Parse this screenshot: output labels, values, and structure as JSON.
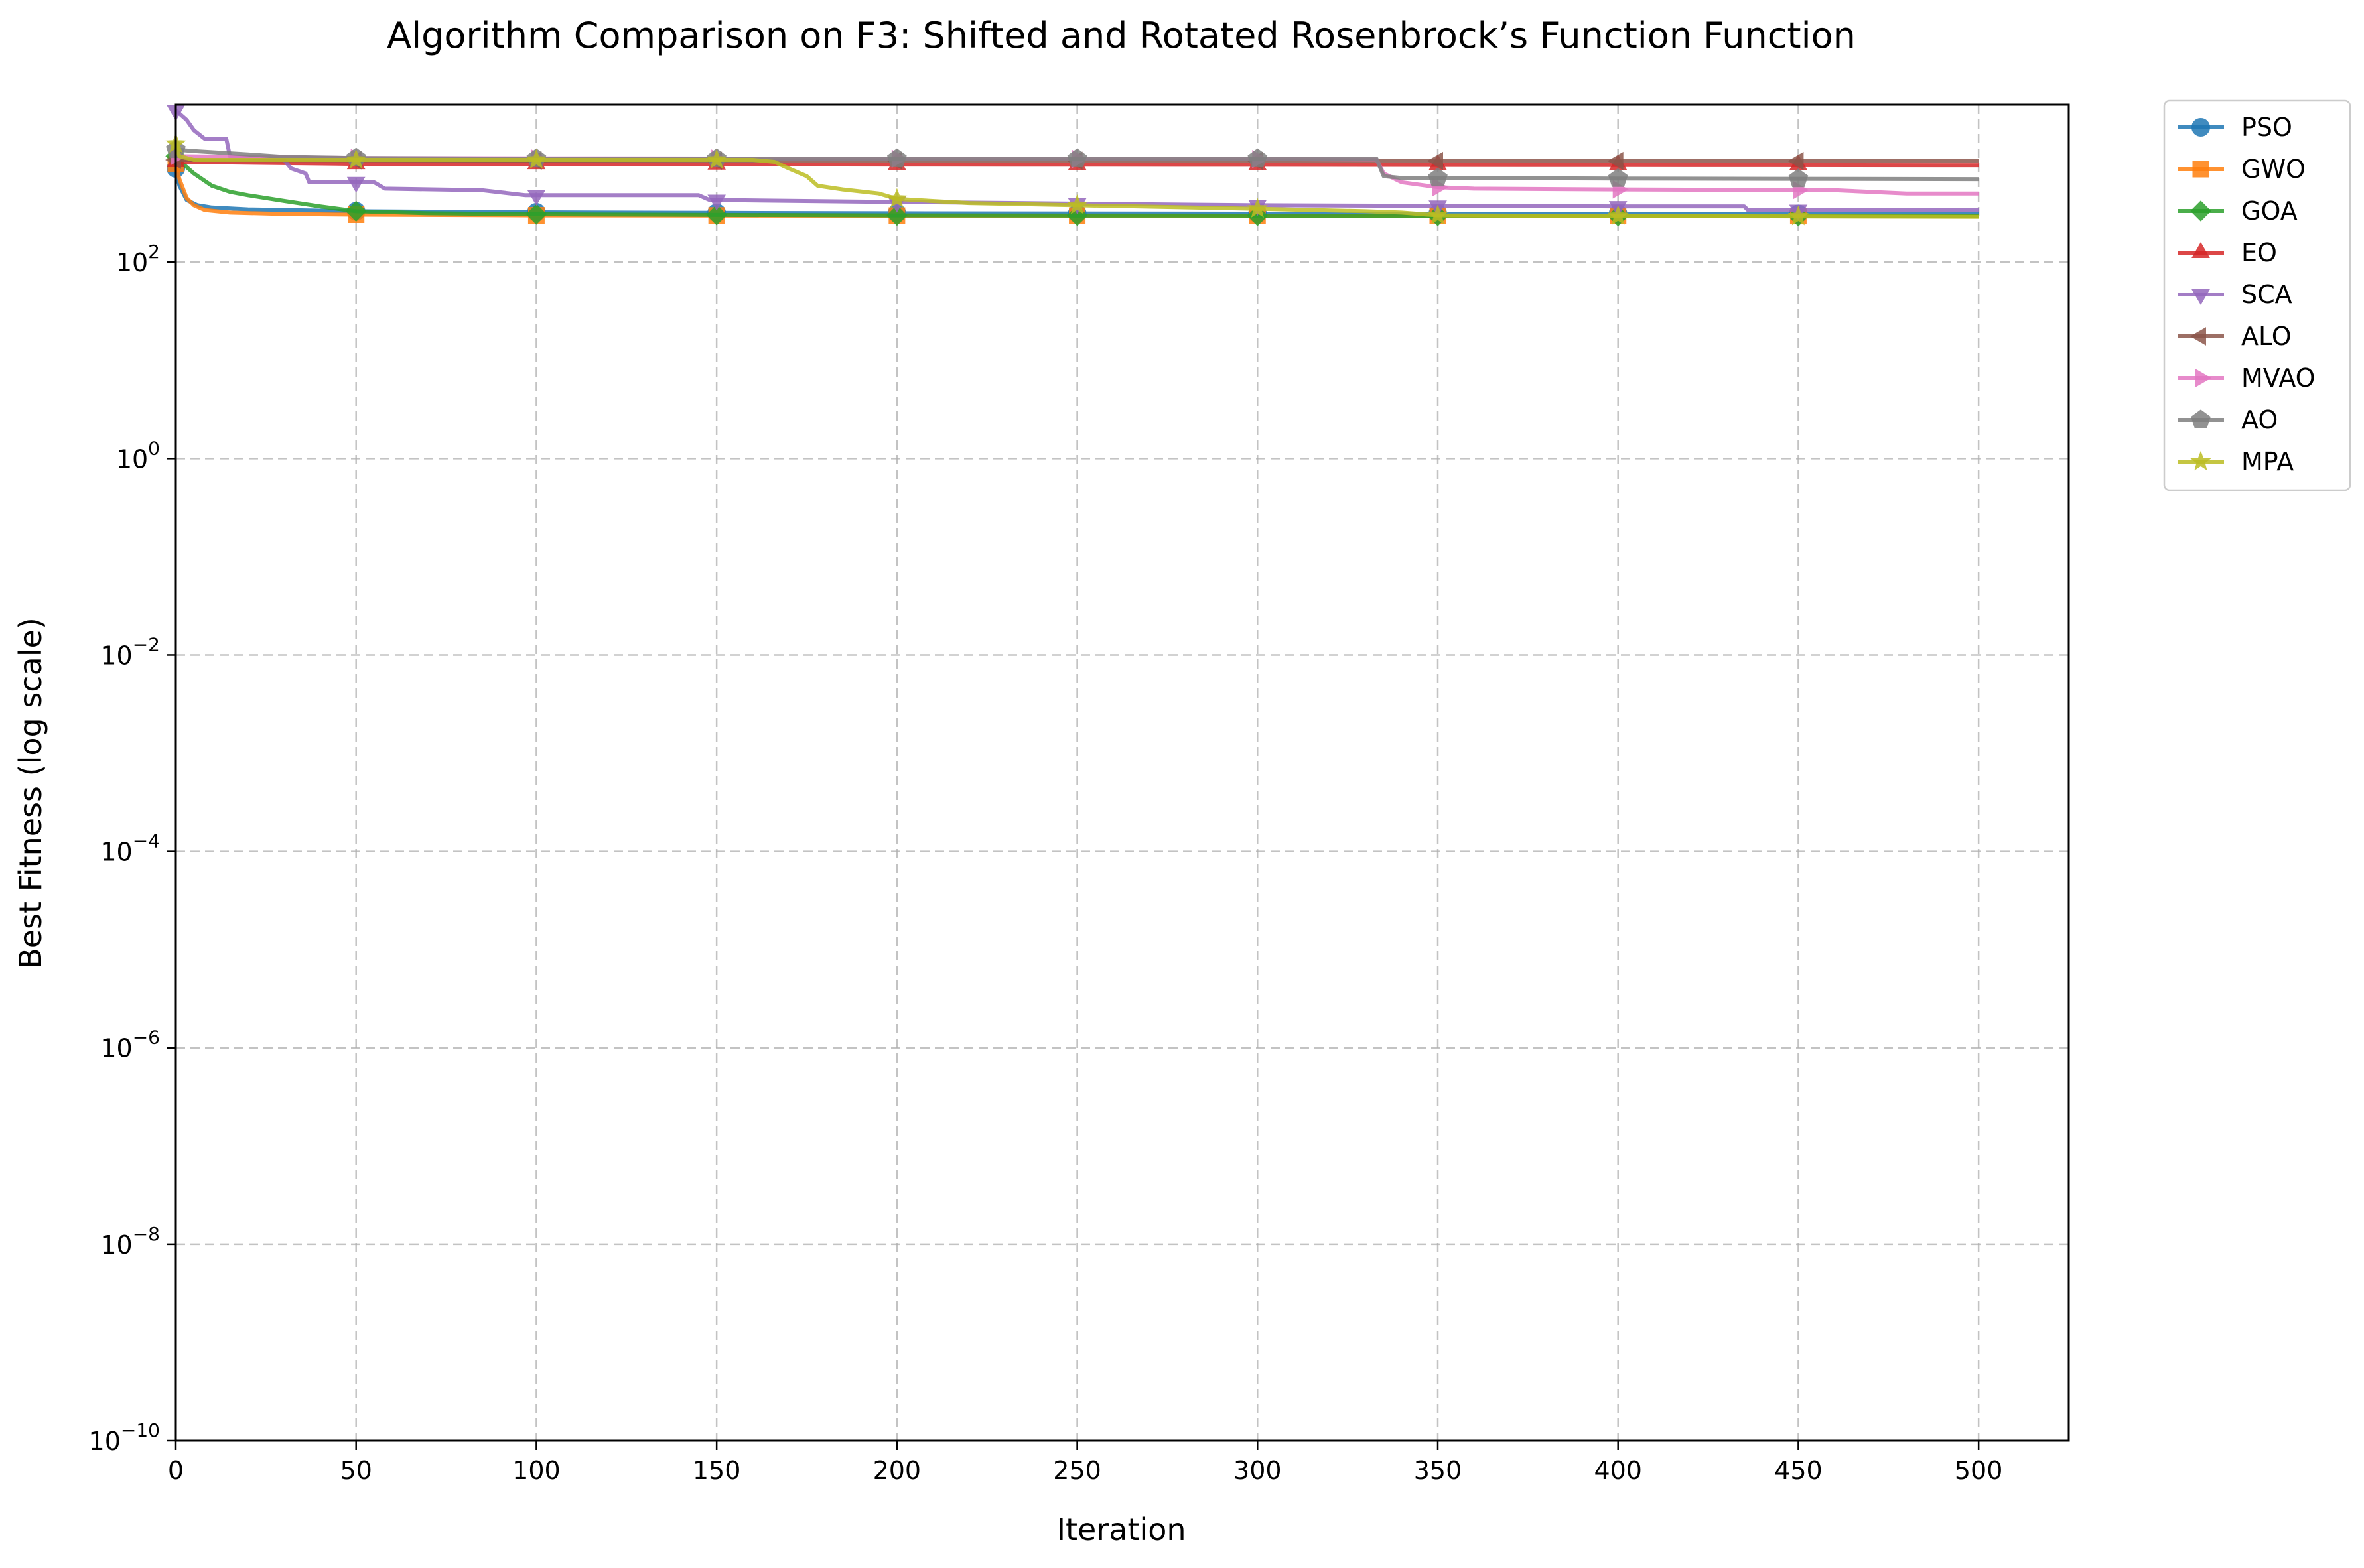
{
  "chart_data": {
    "type": "line",
    "title": "Algorithm Comparison on F3: Shifted and Rotated Rosenbrock’s Function Function",
    "xlabel": "Iteration",
    "ylabel": "Best Fitness (log scale)",
    "xlim": [
      0,
      525
    ],
    "ylim": [
      1e-10,
      4000
    ],
    "yscale": "log",
    "grid": true,
    "legend_position": "outside-top-right",
    "x_ticks": [
      0,
      50,
      100,
      150,
      200,
      250,
      300,
      350,
      400,
      450,
      500
    ],
    "x_tick_labels": [
      "0",
      "50",
      "100",
      "150",
      "200",
      "250",
      "300",
      "350",
      "400",
      "450",
      "500"
    ],
    "y_ticks": [
      1e-10,
      1e-08,
      1e-06,
      0.0001,
      0.01,
      1,
      100
    ],
    "y_tick_labels": [
      {
        "base": "10",
        "exp": "−10"
      },
      {
        "base": "10",
        "exp": "−8"
      },
      {
        "base": "10",
        "exp": "−6"
      },
      {
        "base": "10",
        "exp": "−4"
      },
      {
        "base": "10",
        "exp": "−2"
      },
      {
        "base": "10",
        "exp": "0"
      },
      {
        "base": "10",
        "exp": "2"
      }
    ],
    "series": [
      {
        "name": "PSO",
        "color": "#1f77b4",
        "marker": "circle",
        "points": [
          [
            0,
            900
          ],
          [
            1,
            600
          ],
          [
            3,
            430
          ],
          [
            6,
            380
          ],
          [
            10,
            360
          ],
          [
            20,
            345
          ],
          [
            40,
            335
          ],
          [
            50,
            330
          ],
          [
            100,
            322
          ],
          [
            150,
            318
          ],
          [
            200,
            315
          ],
          [
            300,
            312
          ],
          [
            400,
            311
          ],
          [
            500,
            310
          ]
        ]
      },
      {
        "name": "GWO",
        "color": "#ff7f0e",
        "marker": "square",
        "points": [
          [
            0,
            1000
          ],
          [
            1,
            700
          ],
          [
            3,
            450
          ],
          [
            5,
            380
          ],
          [
            8,
            340
          ],
          [
            15,
            320
          ],
          [
            30,
            310
          ],
          [
            50,
            305
          ],
          [
            100,
            300
          ],
          [
            200,
            298
          ],
          [
            300,
            297
          ],
          [
            400,
            296
          ],
          [
            500,
            295
          ]
        ]
      },
      {
        "name": "GOA",
        "color": "#2ca02c",
        "marker": "diamond",
        "points": [
          [
            0,
            1200
          ],
          [
            2,
            1000
          ],
          [
            5,
            800
          ],
          [
            10,
            600
          ],
          [
            15,
            520
          ],
          [
            20,
            480
          ],
          [
            30,
            420
          ],
          [
            40,
            370
          ],
          [
            50,
            330
          ],
          [
            70,
            315
          ],
          [
            100,
            308
          ],
          [
            150,
            303
          ],
          [
            200,
            300
          ],
          [
            300,
            298
          ],
          [
            400,
            296
          ],
          [
            500,
            295
          ]
        ]
      },
      {
        "name": "EO",
        "color": "#d62728",
        "marker": "triangle-up",
        "points": [
          [
            0,
            1050
          ],
          [
            50,
            1000
          ],
          [
            100,
            1000
          ],
          [
            150,
            990
          ],
          [
            200,
            985
          ],
          [
            300,
            980
          ],
          [
            400,
            975
          ],
          [
            500,
            970
          ]
        ]
      },
      {
        "name": "SCA",
        "color": "#9467bd",
        "marker": "triangle-down",
        "points": [
          [
            0,
            3500
          ],
          [
            3,
            2800
          ],
          [
            5,
            2200
          ],
          [
            8,
            1800
          ],
          [
            14,
            1800
          ],
          [
            15,
            1200
          ],
          [
            30,
            1100
          ],
          [
            32,
            900
          ],
          [
            36,
            800
          ],
          [
            37,
            650
          ],
          [
            55,
            650
          ],
          [
            58,
            560
          ],
          [
            85,
            540
          ],
          [
            97,
            480
          ],
          [
            145,
            480
          ],
          [
            148,
            430
          ],
          [
            200,
            410
          ],
          [
            300,
            380
          ],
          [
            400,
            370
          ],
          [
            435,
            370
          ],
          [
            436,
            340
          ],
          [
            500,
            340
          ]
        ]
      },
      {
        "name": "ALO",
        "color": "#8c564b",
        "marker": "triangle-left",
        "points": [
          [
            0,
            1100
          ],
          [
            50,
            1090
          ],
          [
            100,
            1080
          ],
          [
            150,
            1080
          ],
          [
            200,
            1080
          ],
          [
            300,
            1075
          ],
          [
            400,
            1070
          ],
          [
            500,
            1070
          ]
        ]
      },
      {
        "name": "MVAO",
        "color": "#e377c2",
        "marker": "triangle-right",
        "points": [
          [
            0,
            1200
          ],
          [
            50,
            1150
          ],
          [
            100,
            1140
          ],
          [
            200,
            1130
          ],
          [
            300,
            1120
          ],
          [
            333,
            1110
          ],
          [
            335,
            800
          ],
          [
            340,
            650
          ],
          [
            350,
            580
          ],
          [
            360,
            560
          ],
          [
            400,
            550
          ],
          [
            460,
            540
          ],
          [
            480,
            500
          ],
          [
            500,
            500
          ]
        ]
      },
      {
        "name": "AO",
        "color": "#7f7f7f",
        "marker": "pentagon",
        "points": [
          [
            0,
            1400
          ],
          [
            5,
            1350
          ],
          [
            20,
            1250
          ],
          [
            30,
            1180
          ],
          [
            50,
            1150
          ],
          [
            100,
            1130
          ],
          [
            200,
            1130
          ],
          [
            300,
            1130
          ],
          [
            333,
            1130
          ],
          [
            335,
            750
          ],
          [
            340,
            720
          ],
          [
            400,
            710
          ],
          [
            500,
            700
          ]
        ]
      },
      {
        "name": "MPA",
        "color": "#bcbd22",
        "marker": "star",
        "points": [
          [
            0,
            1600
          ],
          [
            1,
            1200
          ],
          [
            5,
            1100
          ],
          [
            50,
            1100
          ],
          [
            100,
            1100
          ],
          [
            160,
            1100
          ],
          [
            166,
            1050
          ],
          [
            170,
            900
          ],
          [
            175,
            750
          ],
          [
            178,
            600
          ],
          [
            185,
            550
          ],
          [
            195,
            500
          ],
          [
            200,
            440
          ],
          [
            220,
            400
          ],
          [
            250,
            380
          ],
          [
            300,
            350
          ],
          [
            330,
            330
          ],
          [
            340,
            320
          ],
          [
            350,
            300
          ],
          [
            400,
            295
          ],
          [
            500,
            290
          ]
        ]
      }
    ]
  }
}
